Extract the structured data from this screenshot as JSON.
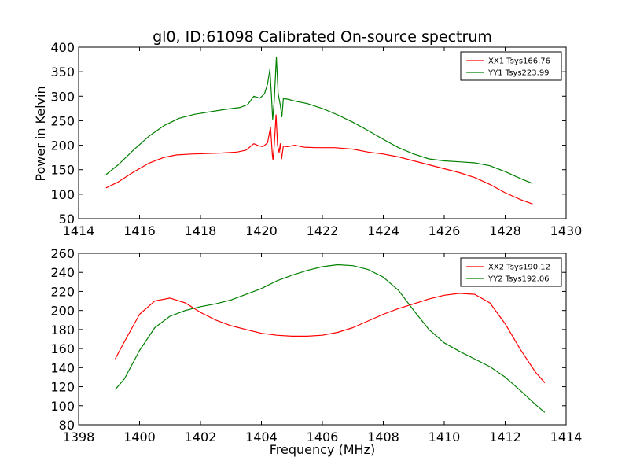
{
  "chart_data": [
    {
      "type": "line",
      "title": "gl0, ID:61098 Calibrated On-source spectrum",
      "xlabel": "",
      "ylabel": "Power in Kelvin",
      "xlim": [
        1414,
        1430
      ],
      "ylim": [
        50,
        400
      ],
      "xticks": [
        "1414",
        "1416",
        "1418",
        "1420",
        "1422",
        "1424",
        "1426",
        "1428",
        "1430"
      ],
      "yticks": [
        "50",
        "100",
        "150",
        "200",
        "250",
        "300",
        "350",
        "400"
      ],
      "legend_position": "top-right",
      "grid": false,
      "series": [
        {
          "name": "XX1 Tsys166.76",
          "color": "#ff0000",
          "points": [
            [
              1414.9,
              113
            ],
            [
              1415.3,
              125
            ],
            [
              1415.8,
              145
            ],
            [
              1416.3,
              163
            ],
            [
              1416.8,
              175
            ],
            [
              1417.2,
              180
            ],
            [
              1417.7,
              182
            ],
            [
              1418.2,
              183
            ],
            [
              1418.7,
              184
            ],
            [
              1419.2,
              186
            ],
            [
              1419.5,
              190
            ],
            [
              1419.75,
              203
            ],
            [
              1419.9,
              199
            ],
            [
              1420.05,
              197
            ],
            [
              1420.2,
              205
            ],
            [
              1420.3,
              237
            ],
            [
              1420.36,
              180
            ],
            [
              1420.38,
              170
            ],
            [
              1420.42,
              200
            ],
            [
              1420.48,
              262
            ],
            [
              1420.53,
              200
            ],
            [
              1420.58,
              185
            ],
            [
              1420.62,
              203
            ],
            [
              1420.66,
              172
            ],
            [
              1420.72,
              198
            ],
            [
              1420.85,
              197
            ],
            [
              1421.1,
              200
            ],
            [
              1421.4,
              196
            ],
            [
              1421.8,
              195
            ],
            [
              1422.4,
              195
            ],
            [
              1423.0,
              192
            ],
            [
              1423.5,
              186
            ],
            [
              1424.0,
              182
            ],
            [
              1424.5,
              176
            ],
            [
              1425.0,
              168
            ],
            [
              1425.5,
              160
            ],
            [
              1426.0,
              152
            ],
            [
              1426.5,
              144
            ],
            [
              1427.0,
              134
            ],
            [
              1427.5,
              120
            ],
            [
              1428.0,
              103
            ],
            [
              1428.5,
              89
            ],
            [
              1428.9,
              80
            ]
          ]
        },
        {
          "name": "YY1 Tsys223.99",
          "color": "#008000",
          "points": [
            [
              1414.9,
              140
            ],
            [
              1415.3,
              160
            ],
            [
              1415.8,
              190
            ],
            [
              1416.3,
              218
            ],
            [
              1416.8,
              240
            ],
            [
              1417.3,
              255
            ],
            [
              1417.8,
              263
            ],
            [
              1418.3,
              268
            ],
            [
              1418.8,
              273
            ],
            [
              1419.3,
              277
            ],
            [
              1419.55,
              283
            ],
            [
              1419.75,
              300
            ],
            [
              1419.95,
              296
            ],
            [
              1420.1,
              305
            ],
            [
              1420.2,
              325
            ],
            [
              1420.28,
              355
            ],
            [
              1420.33,
              300
            ],
            [
              1420.37,
              253
            ],
            [
              1420.42,
              290
            ],
            [
              1420.49,
              380
            ],
            [
              1420.55,
              305
            ],
            [
              1420.62,
              282
            ],
            [
              1420.67,
              258
            ],
            [
              1420.72,
              295
            ],
            [
              1420.85,
              294
            ],
            [
              1421.1,
              290
            ],
            [
              1421.5,
              285
            ],
            [
              1422.0,
              275
            ],
            [
              1422.5,
              262
            ],
            [
              1423.0,
              247
            ],
            [
              1423.5,
              230
            ],
            [
              1424.0,
              212
            ],
            [
              1424.5,
              195
            ],
            [
              1425.0,
              182
            ],
            [
              1425.5,
              172
            ],
            [
              1426.0,
              168
            ],
            [
              1426.5,
              166
            ],
            [
              1427.0,
              164
            ],
            [
              1427.5,
              158
            ],
            [
              1428.0,
              146
            ],
            [
              1428.5,
              132
            ],
            [
              1428.9,
              122
            ]
          ]
        }
      ]
    },
    {
      "type": "line",
      "title": "",
      "xlabel": "Frequency (MHz)",
      "ylabel": "",
      "xlim": [
        1398,
        1414
      ],
      "ylim": [
        80,
        260
      ],
      "xticks": [
        "1398",
        "1400",
        "1402",
        "1404",
        "1406",
        "1408",
        "1410",
        "1412",
        "1414"
      ],
      "yticks": [
        "80",
        "100",
        "120",
        "140",
        "160",
        "180",
        "200",
        "220",
        "240",
        "260"
      ],
      "legend_position": "top-right",
      "grid": false,
      "series": [
        {
          "name": "XX2 Tsys190.12",
          "color": "#ff0000",
          "points": [
            [
              1399.2,
              149
            ],
            [
              1399.5,
              167
            ],
            [
              1400.0,
              196
            ],
            [
              1400.5,
              210
            ],
            [
              1401.0,
              213
            ],
            [
              1401.5,
              208
            ],
            [
              1402.0,
              198
            ],
            [
              1402.5,
              190
            ],
            [
              1403.0,
              184
            ],
            [
              1403.5,
              180
            ],
            [
              1404.0,
              176
            ],
            [
              1404.5,
              174
            ],
            [
              1405.0,
              173
            ],
            [
              1405.5,
              173
            ],
            [
              1406.0,
              174
            ],
            [
              1406.5,
              177
            ],
            [
              1407.0,
              182
            ],
            [
              1407.5,
              189
            ],
            [
              1408.0,
              196
            ],
            [
              1408.5,
              202
            ],
            [
              1409.0,
              207
            ],
            [
              1409.5,
              212
            ],
            [
              1410.0,
              216
            ],
            [
              1410.5,
              218
            ],
            [
              1411.0,
              217
            ],
            [
              1411.5,
              208
            ],
            [
              1412.0,
              186
            ],
            [
              1412.5,
              159
            ],
            [
              1413.0,
              135
            ],
            [
              1413.3,
              124
            ]
          ]
        },
        {
          "name": "YY2 Tsys192.06",
          "color": "#008000",
          "points": [
            [
              1399.2,
              117
            ],
            [
              1399.5,
              128
            ],
            [
              1400.0,
              158
            ],
            [
              1400.5,
              182
            ],
            [
              1401.0,
              194
            ],
            [
              1401.5,
              200
            ],
            [
              1402.0,
              204
            ],
            [
              1402.5,
              207
            ],
            [
              1403.0,
              211
            ],
            [
              1403.5,
              217
            ],
            [
              1404.0,
              223
            ],
            [
              1404.5,
              231
            ],
            [
              1405.0,
              237
            ],
            [
              1405.5,
              242
            ],
            [
              1406.0,
              246
            ],
            [
              1406.5,
              248
            ],
            [
              1407.0,
              247
            ],
            [
              1407.5,
              243
            ],
            [
              1408.0,
              235
            ],
            [
              1408.5,
              221
            ],
            [
              1409.0,
              200
            ],
            [
              1409.5,
              180
            ],
            [
              1410.0,
              166
            ],
            [
              1410.5,
              157
            ],
            [
              1411.0,
              149
            ],
            [
              1411.5,
              141
            ],
            [
              1412.0,
              130
            ],
            [
              1412.5,
              116
            ],
            [
              1413.0,
              101
            ],
            [
              1413.3,
              93
            ]
          ]
        }
      ]
    }
  ]
}
